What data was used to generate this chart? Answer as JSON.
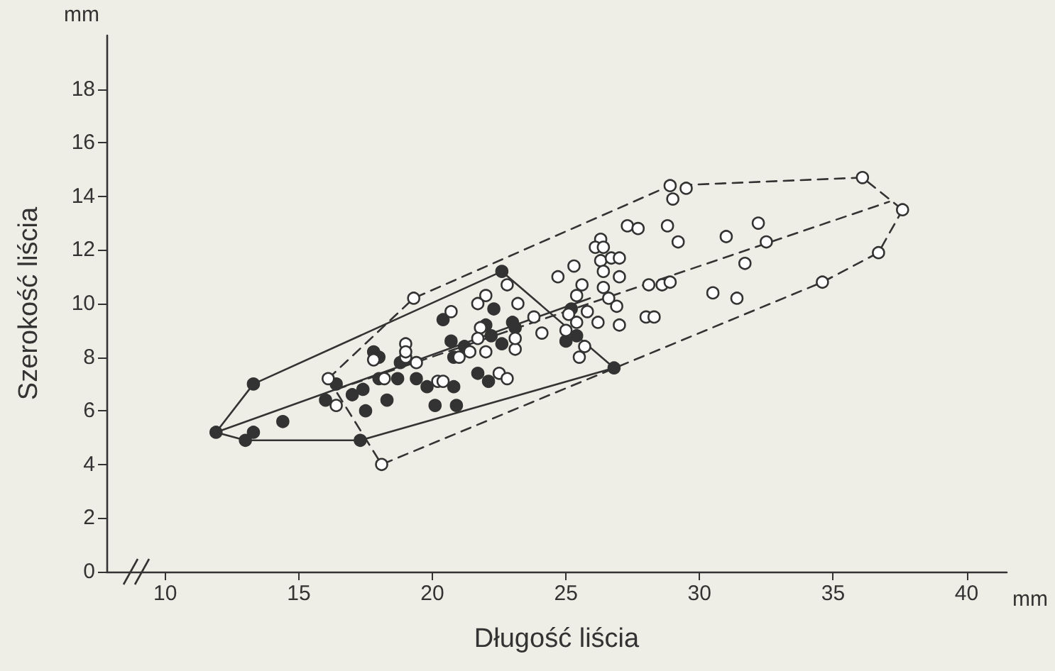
{
  "chart_data": {
    "type": "scatter",
    "xlabel": "Długość liścia",
    "ylabel": "Szerokość liścia",
    "annotations": [
      "mm",
      "mm"
    ],
    "xlim": [
      7.8,
      41.5
    ],
    "xticks": [
      10,
      15,
      20,
      25,
      30,
      35,
      40
    ],
    "ylim": [
      0,
      20
    ],
    "yticks": [
      0,
      2,
      4,
      6,
      8,
      10,
      12,
      14,
      16,
      18
    ],
    "grid": false,
    "marker": "circle",
    "series": [
      {
        "type": "line",
        "color": "#333333",
        "line_style": "solid",
        "marker": "none",
        "x": [
          11.9,
          13.3,
          22.6,
          26.8
        ],
        "values": [
          5.2,
          7.0,
          11.2,
          7.6
        ]
      },
      {
        "type": "line",
        "color": "#333333",
        "line_style": "solid",
        "marker": "none",
        "x": [
          11.9,
          13.0,
          17.3,
          26.8
        ],
        "values": [
          5.2,
          4.9,
          4.9,
          7.6
        ]
      },
      {
        "type": "line",
        "color": "#333333",
        "line_style": "solid",
        "marker": "none",
        "x": [
          11.9,
          25.9
        ],
        "values": [
          5.2,
          10.2
        ]
      },
      {
        "type": "line",
        "color": "#333333",
        "line_style": "dashed",
        "marker": "none",
        "x": [
          16.1,
          19.3,
          28.9,
          36.1,
          37.6
        ],
        "values": [
          7.2,
          10.2,
          14.4,
          14.7,
          13.5
        ]
      },
      {
        "type": "line",
        "color": "#333333",
        "line_style": "dashed",
        "marker": "none",
        "x": [
          16.1,
          18.1,
          34.6,
          36.7,
          37.6
        ],
        "values": [
          7.2,
          4.0,
          10.8,
          11.9,
          13.5
        ]
      },
      {
        "type": "line",
        "color": "#333333",
        "line_style": "dashed",
        "marker": "none",
        "x": [
          16.4,
          37.1
        ],
        "values": [
          6.8,
          13.8
        ]
      },
      {
        "type": "scatter",
        "color": "#333333",
        "x": [
          11.9,
          13.0,
          13.3,
          13.3,
          14.4,
          16.0,
          16.4,
          17.0,
          17.4,
          17.5,
          18.3,
          17.3,
          22.6,
          22.3,
          20.4,
          20.7,
          21.2,
          22.0,
          22.2,
          23.0,
          23.1,
          22.6,
          20.8,
          18.8,
          17.8,
          18.0,
          19.4,
          18.7,
          18.0,
          19.8,
          20.8,
          20.1,
          20.9,
          22.1,
          21.7,
          25.2,
          25.0,
          25.4,
          26.8
        ],
        "values": [
          5.2,
          4.9,
          7.0,
          5.2,
          5.6,
          6.4,
          7.0,
          6.6,
          6.8,
          6.0,
          6.4,
          4.9,
          11.2,
          9.8,
          9.4,
          8.6,
          8.4,
          9.2,
          8.8,
          9.3,
          9.1,
          8.5,
          8.0,
          7.8,
          8.2,
          8.0,
          7.2,
          7.2,
          7.2,
          6.9,
          6.9,
          6.2,
          6.2,
          7.1,
          7.4,
          9.8,
          8.6,
          8.8,
          7.6
        ]
      },
      {
        "type": "scatter",
        "color": "#ffffff",
        "x": [
          16.1,
          16.4,
          18.1,
          19.0,
          19.3,
          22.8,
          22.0,
          21.7,
          20.7,
          23.2,
          23.8,
          24.1,
          21.8,
          21.7,
          22.0,
          23.1,
          23.1,
          19.0,
          19.0,
          17.8,
          19.4,
          21.0,
          21.4,
          20.2,
          20.4,
          22.5,
          22.8,
          18.2,
          24.7,
          25.1,
          25.0,
          36.1,
          37.6,
          36.7,
          34.6,
          28.9,
          29.5,
          29.0,
          27.3,
          27.7,
          28.8,
          29.2,
          32.2,
          32.5,
          31.0,
          31.7,
          30.5,
          31.4,
          28.1,
          28.6,
          28.9,
          28.0,
          28.3,
          26.3,
          26.1,
          26.4,
          26.3,
          26.7,
          27.0,
          26.4,
          27.0,
          25.3,
          25.6,
          26.4,
          26.6,
          25.4,
          26.9,
          25.8,
          26.2,
          27.0,
          25.4,
          25.7,
          25.5
        ],
        "values": [
          7.2,
          6.2,
          4.0,
          8.0,
          10.2,
          10.7,
          10.3,
          10.0,
          9.7,
          10.0,
          9.5,
          8.9,
          9.1,
          8.7,
          8.2,
          8.3,
          8.7,
          8.5,
          8.2,
          7.9,
          7.8,
          8.0,
          8.2,
          7.1,
          7.1,
          7.4,
          7.2,
          7.2,
          11.0,
          9.6,
          9.0,
          14.7,
          13.5,
          11.9,
          10.8,
          14.4,
          14.3,
          13.9,
          12.9,
          12.8,
          12.9,
          12.3,
          13.0,
          12.3,
          12.5,
          11.5,
          10.4,
          10.2,
          10.7,
          10.7,
          10.8,
          9.5,
          9.5,
          12.4,
          12.1,
          12.1,
          11.6,
          11.7,
          11.7,
          11.2,
          11.0,
          11.4,
          10.7,
          10.6,
          10.2,
          10.3,
          9.9,
          9.7,
          9.3,
          9.2,
          9.3,
          8.4,
          8.0
        ]
      }
    ]
  }
}
